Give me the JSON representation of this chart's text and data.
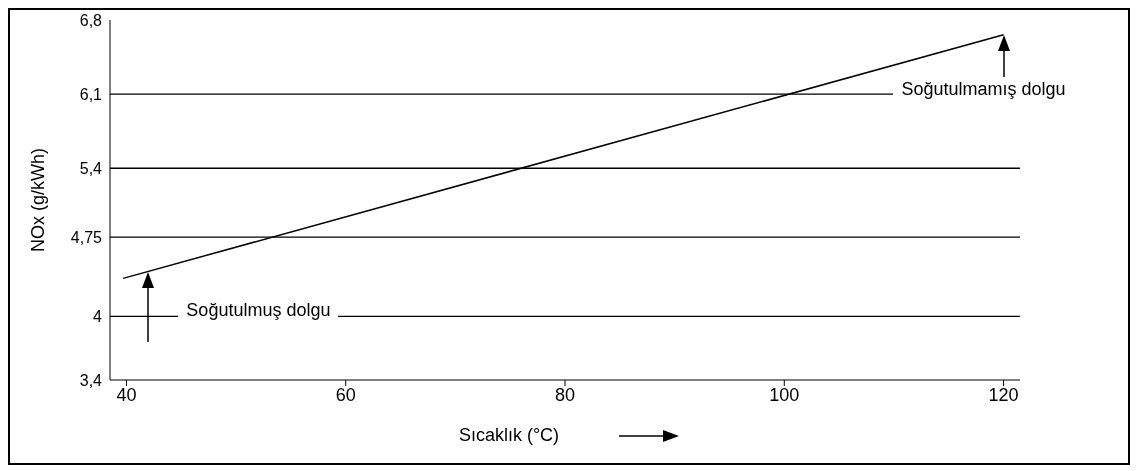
{
  "chart_data": {
    "type": "line",
    "xlabel": "Sıcaklık (°C)",
    "ylabel": "NOx (g/kWh)",
    "x": [
      39.7,
      120
    ],
    "series": [
      {
        "color": "#000000",
        "values": [
          4.36,
          6.66
        ]
      }
    ],
    "xlim": [
      38.5,
      121.5
    ],
    "xticks": [
      40,
      60,
      80,
      100,
      120
    ],
    "ylim": [
      3.4,
      6.8
    ],
    "yticks": [
      {
        "value": 3.4,
        "label": "3,4"
      },
      {
        "value": 4,
        "label": "4"
      },
      {
        "value": 4.75,
        "label": "4,75"
      },
      {
        "value": 5.4,
        "label": "5,4"
      },
      {
        "value": 6.1,
        "label": "6,1"
      },
      {
        "value": 6.8,
        "label": "6,8"
      }
    ],
    "grid": "y",
    "marker": "none",
    "line_style": "solid",
    "annotations": [
      {
        "text": "Soğutulmuş dolgu",
        "x": 42,
        "y": 4.42
      },
      {
        "text": "Soğutulmamış dolgu",
        "x": 120,
        "y": 6.66
      }
    ]
  }
}
